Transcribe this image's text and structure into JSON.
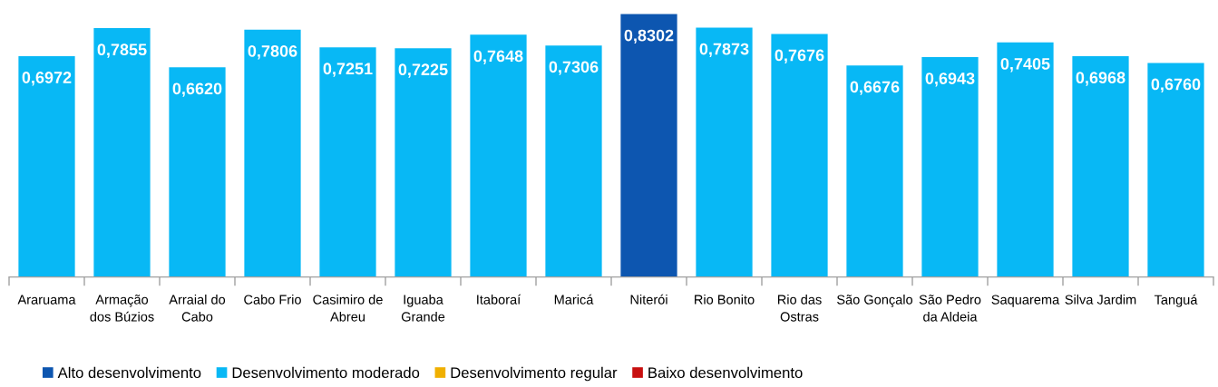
{
  "chart_data": {
    "type": "bar",
    "stacked": true,
    "tick_labels": "x",
    "legend": "bottom left",
    "categories": [
      "Araruama",
      "Armação\ndos Búzios",
      "Arraial do\nCabo",
      "Cabo Frio",
      "Casimiro de\nAbreu",
      "Iguaba\nGrande",
      "Itaboraí",
      "Maricá",
      "Niterói",
      "Rio Bonito",
      "Rio das\nOstras",
      "São Gonçalo",
      "São Pedro\nda Aldeia",
      "Saquarema",
      "Silva Jardim",
      "Tanguá"
    ],
    "series": [
      {
        "name": "Alto desenvolvimento",
        "color": "#0d56b0",
        "values": [
          null,
          null,
          null,
          null,
          null,
          null,
          null,
          null,
          0.8302,
          null,
          null,
          null,
          null,
          null,
          null,
          null
        ],
        "value_labels": [
          null,
          null,
          null,
          null,
          null,
          null,
          null,
          null,
          "0,8302",
          null,
          null,
          null,
          null,
          null,
          null,
          null
        ]
      },
      {
        "name": "Desenvolvimento moderado",
        "color": "#08b8f5",
        "values": [
          0.6972,
          0.7855,
          0.662,
          0.7806,
          0.7251,
          0.7225,
          0.7648,
          0.7306,
          null,
          0.7873,
          0.7676,
          0.6676,
          0.6943,
          0.7405,
          0.6968,
          0.676
        ],
        "value_labels": [
          "0,6972",
          "0,7855",
          "0,6620",
          "0,7806",
          "0,7251",
          "0,7225",
          "0,7648",
          "0,7306",
          null,
          "0,7873",
          "0,7676",
          "0,6676",
          "0,6943",
          "0,7405",
          "0,6968",
          "0,6760"
        ]
      },
      {
        "name": "Desenvolvimento regular",
        "color": "#f0b000",
        "values": [
          null,
          null,
          null,
          null,
          null,
          null,
          null,
          null,
          null,
          null,
          null,
          null,
          null,
          null,
          null,
          null
        ]
      },
      {
        "name": "Baixo desenvolvimento",
        "color": "#c81010",
        "values": [
          null,
          null,
          null,
          null,
          null,
          null,
          null,
          null,
          null,
          null,
          null,
          null,
          null,
          null,
          null,
          null
        ]
      }
    ]
  }
}
